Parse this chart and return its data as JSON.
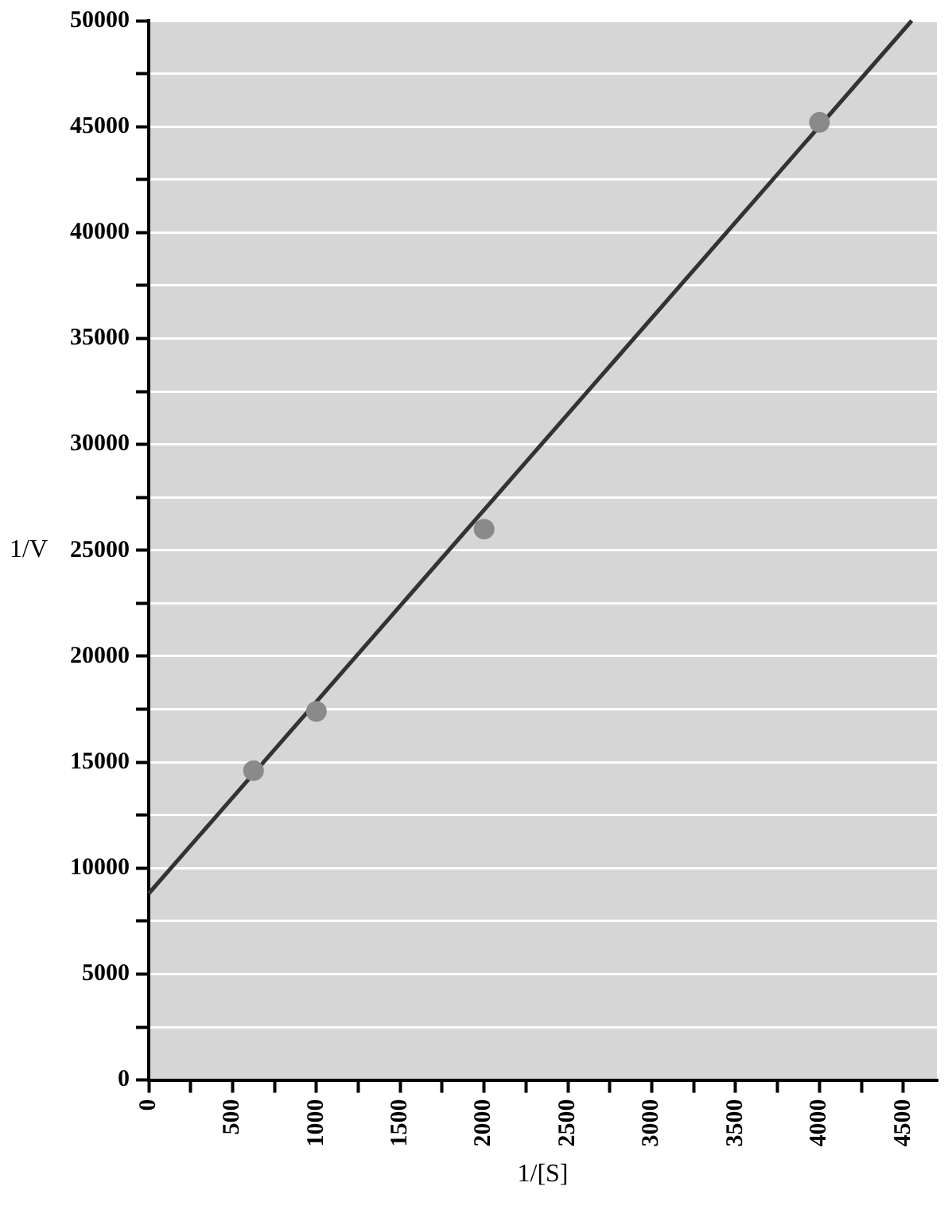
{
  "chart_data": {
    "type": "scatter",
    "xlabel": "1/[S]",
    "ylabel": "1/V",
    "xlim": [
      0,
      4700
    ],
    "xticks": [
      0,
      {
        "value": 250,
        "label": null
      },
      500,
      {
        "value": 750,
        "label": null
      },
      1000,
      {
        "value": 1250,
        "label": null
      },
      1500,
      {
        "value": 1750,
        "label": null
      },
      2000,
      {
        "value": 2250,
        "label": null
      },
      2500,
      {
        "value": 2750,
        "label": null
      },
      3000,
      {
        "value": 3250,
        "label": null
      },
      3500,
      {
        "value": 3750,
        "label": null
      },
      4000,
      {
        "value": 4250,
        "label": null
      },
      4500
    ],
    "ylim": [
      0,
      50000
    ],
    "yticks": [
      0,
      {
        "value": 2500,
        "label": null
      },
      5000,
      {
        "value": 7500,
        "label": null
      },
      10000,
      {
        "value": 12500,
        "label": null
      },
      15000,
      {
        "value": 17500,
        "label": null
      },
      20000,
      {
        "value": 22500,
        "label": null
      },
      25000,
      {
        "value": 27500,
        "label": null
      },
      30000,
      {
        "value": 32500,
        "label": null
      },
      35000,
      {
        "value": 37500,
        "label": null
      },
      40000,
      {
        "value": 42500,
        "label": null
      },
      45000,
      {
        "value": 47500,
        "label": null
      },
      50000
    ],
    "grid": "y",
    "legend": false,
    "series": [
      {
        "marker": "circle",
        "color": "#8a8a8a",
        "x": [
          625,
          1000,
          2000,
          4000
        ],
        "values": [
          14600,
          17400,
          26000,
          45200
        ]
      },
      {
        "type": "line",
        "marker": "none",
        "color": "#333333",
        "x": [
          0,
          4550
        ],
        "values": [
          8800,
          50000
        ]
      }
    ]
  }
}
